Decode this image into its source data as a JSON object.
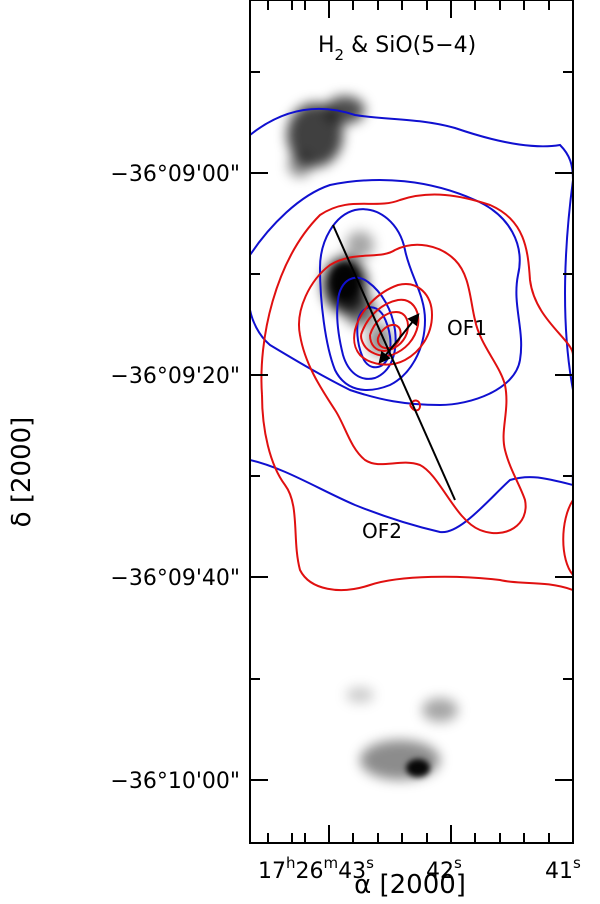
{
  "figure": {
    "title_main": "H",
    "title_sub": "2",
    "title_rest": " & SiO(5−4)",
    "y_axis_title": "δ [2000]",
    "x_axis_title": "α [2000]",
    "y_ticks": [
      "−36°09'00\"",
      "−36°09'20\"",
      "−36°09'40\"",
      "−36°10'00\""
    ],
    "x_ticks": {
      "first": {
        "h": "17",
        "h_unit": "h",
        "m": "26",
        "m_unit": "m",
        "s": "43",
        "s_unit": "s"
      },
      "second": {
        "s": "42",
        "s_unit": "s"
      },
      "third": {
        "s": "41",
        "s_unit": "s"
      }
    },
    "labels": {
      "of1": "OF1",
      "of2": "OF2"
    },
    "colors": {
      "blue_contours": "#1010d0",
      "red_contours": "#e01010",
      "arrows": "#000000",
      "grayscale_emission": "#000000"
    }
  }
}
